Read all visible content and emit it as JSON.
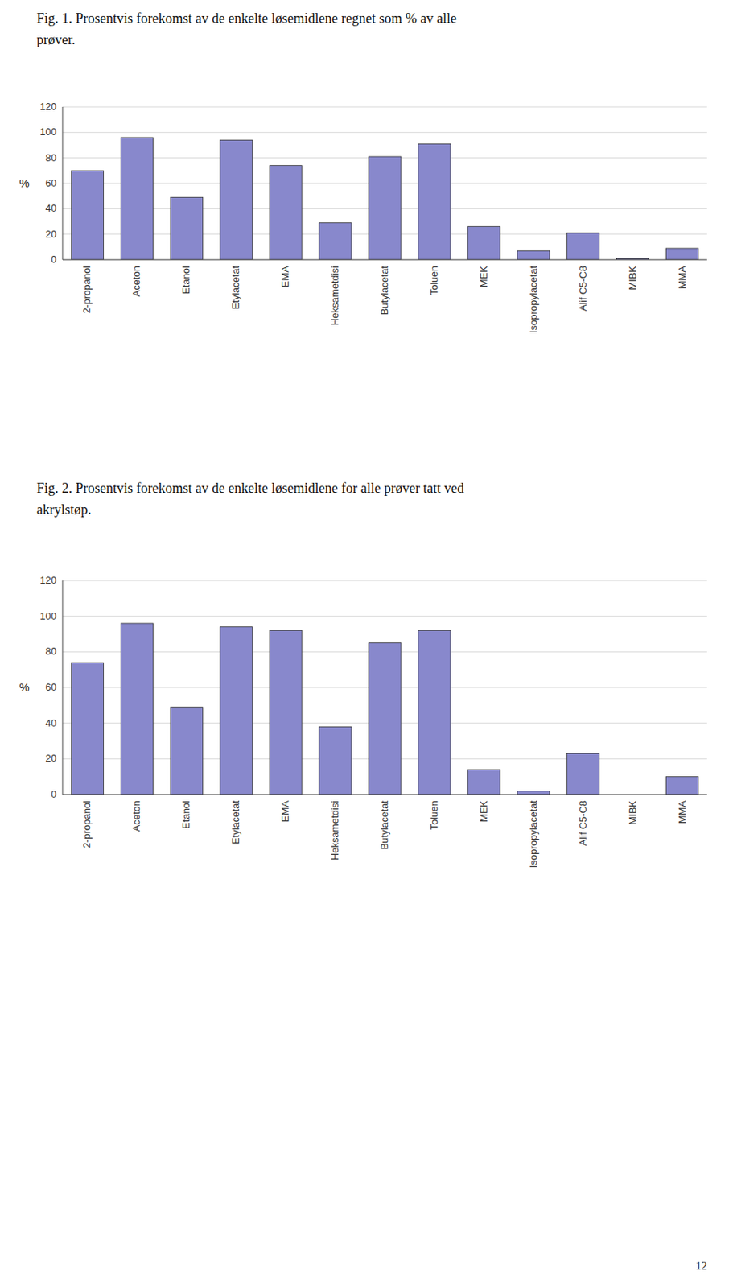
{
  "chart_data": [
    {
      "type": "bar",
      "title": "Fig. 1. Prosentvis forekomst av de enkelte løsemidlene regnet som %  av alle\nprøver.",
      "ylabel": "%",
      "categories": [
        "2-propanol",
        "Aceton",
        "Etanol",
        "Etylacetat",
        "EMA",
        "Heksametdisi",
        "Butylacetat",
        "Toluen",
        "MEK",
        "Isopropylacetat",
        "Alif C5-C8",
        "MIBK",
        "MMA"
      ],
      "values": [
        70,
        96,
        49,
        94,
        74,
        29,
        81,
        91,
        26,
        7,
        21,
        1,
        9
      ],
      "color": "#8888cc",
      "ylim": [
        0,
        120
      ],
      "yticks": [
        0,
        20,
        40,
        60,
        80,
        100,
        120
      ],
      "grid": true
    },
    {
      "type": "bar",
      "title": "Fig. 2. Prosentvis forekomst av de enkelte løsemidlene for alle prøver tatt ved\nakrylstøp.",
      "ylabel": "%",
      "categories": [
        "2-propanol",
        "Aceton",
        "Etanol",
        "Etylacetat",
        "EMA",
        "Heksametdisi",
        "Butylacetat",
        "Toluen",
        "MEK",
        "Isopropylacetat",
        "Alif C5-C8",
        "MIBK",
        "MMA"
      ],
      "values": [
        74,
        96,
        49,
        94,
        92,
        38,
        85,
        92,
        14,
        2,
        23,
        0,
        10
      ],
      "color": "#8888cc",
      "ylim": [
        0,
        120
      ],
      "yticks": [
        0,
        20,
        40,
        60,
        80,
        100,
        120
      ],
      "grid": true
    }
  ],
  "page_number": "12"
}
